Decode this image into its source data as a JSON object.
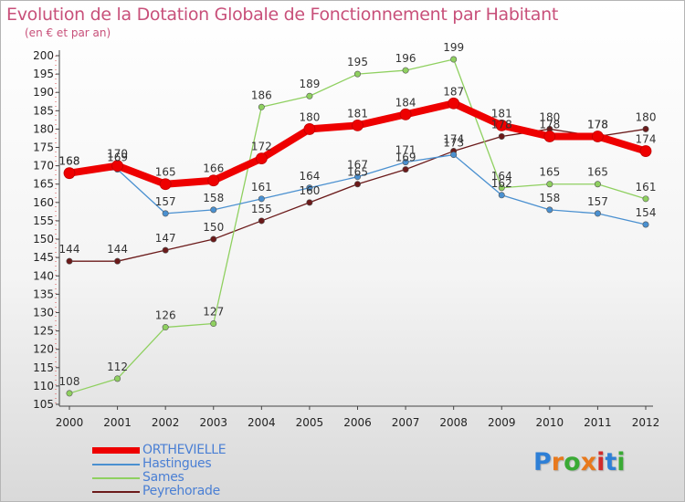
{
  "chart_data": {
    "type": "line",
    "title": "Evolution de la Dotation Globale de Fonctionnement par Habitant",
    "subtitle": "(en € et par an)",
    "xlabel": "",
    "ylabel": "",
    "x": [
      "2000",
      "2001",
      "2002",
      "2003",
      "2004",
      "2005",
      "2006",
      "2007",
      "2008",
      "2009",
      "2010",
      "2011",
      "2012"
    ],
    "ylim": [
      105,
      200
    ],
    "yticks": [
      105,
      110,
      115,
      120,
      125,
      130,
      135,
      140,
      145,
      150,
      155,
      160,
      165,
      170,
      175,
      180,
      185,
      190,
      195,
      200
    ],
    "grid": false,
    "legend_position": "bottom-left",
    "series": [
      {
        "name": "ORTHEVIELLE",
        "color": "#ee0000",
        "values": [
          168,
          170,
          165,
          166,
          172,
          180,
          181,
          184,
          187,
          181,
          178,
          178,
          174
        ]
      },
      {
        "name": "Hastingues",
        "color": "#4a90d0",
        "values": [
          168,
          169,
          157,
          158,
          161,
          164,
          167,
          171,
          173,
          162,
          158,
          157,
          154
        ]
      },
      {
        "name": "Sames",
        "color": "#8fd060",
        "values": [
          108,
          112,
          126,
          127,
          186,
          189,
          195,
          196,
          199,
          164,
          165,
          165,
          161
        ]
      },
      {
        "name": "Peyrehorade",
        "color": "#6b1a1a",
        "values": [
          144,
          144,
          147,
          150,
          155,
          160,
          165,
          169,
          174,
          178,
          180,
          178,
          180
        ]
      }
    ]
  },
  "logo": {
    "letters": [
      "P",
      "r",
      "o",
      "x",
      "i",
      "t",
      "i"
    ],
    "colors": [
      "#2e7fd6",
      "#e8791c",
      "#3aaa35",
      "#e8791c",
      "#d12c2c",
      "#2e7fd6",
      "#3aaa35"
    ]
  }
}
